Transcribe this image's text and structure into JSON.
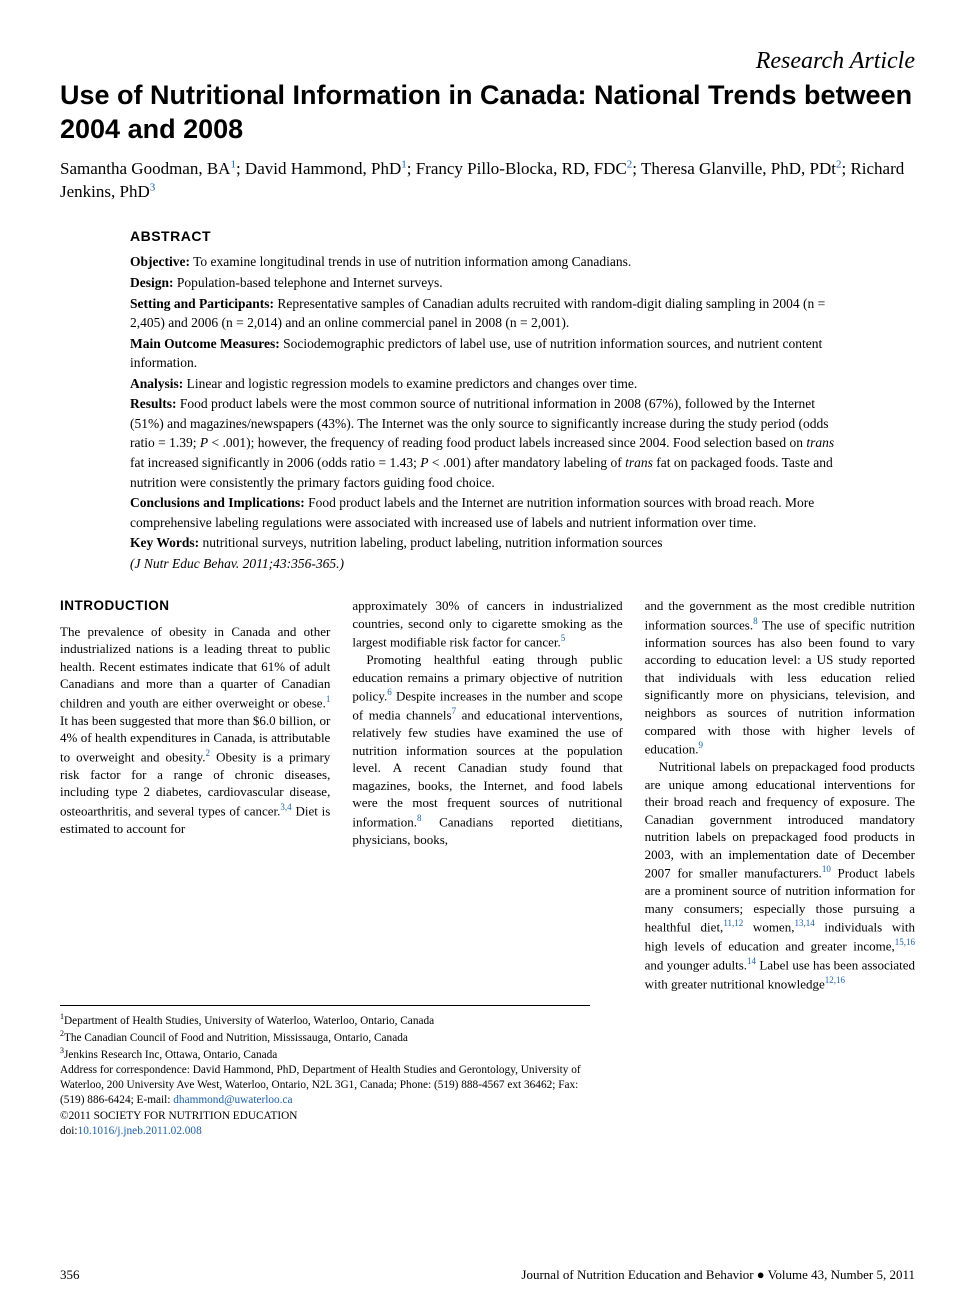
{
  "article_type": "Research Article",
  "title": "Use of Nutritional Information in Canada: National Trends between 2004 and 2008",
  "authors_html": "Samantha Goodman, BA<span class=\"sup\">1</span>; David Hammond, PhD<span class=\"sup\">1</span>; Francy Pillo-Blocka, RD, FDC<span class=\"sup\">2</span>; Theresa Glanville, PhD, PDt<span class=\"sup\">2</span>; Richard Jenkins, PhD<span class=\"sup\">3</span>",
  "abstract": {
    "heading": "ABSTRACT",
    "items": [
      {
        "label": "Objective:",
        "text": "To examine longitudinal trends in use of nutrition information among Canadians."
      },
      {
        "label": "Design:",
        "text": "Population-based telephone and Internet surveys."
      },
      {
        "label": "Setting and Participants:",
        "text": "Representative samples of Canadian adults recruited with random-digit dialing sampling in 2004 (n = 2,405) and 2006 (n = 2,014) and an online commercial panel in 2008 (n = 2,001)."
      },
      {
        "label": "Main Outcome Measures:",
        "text": "Sociodemographic predictors of label use, use of nutrition information sources, and nutrient content information."
      },
      {
        "label": "Analysis:",
        "text": "Linear and logistic regression models to examine predictors and changes over time."
      },
      {
        "label": "Results:",
        "text": "Food product labels were the most common source of nutritional information in 2008 (67%), followed by the Internet (51%) and magazines/newspapers (43%). The Internet was the only source to significantly increase during the study period (odds ratio = 1.39; <i>P</i> < .001); however, the frequency of reading food product labels increased since 2004. Food selection based on <i>trans</i> fat increased significantly in 2006 (odds ratio = 1.43; <i>P</i> < .001) after mandatory labeling of <i>trans</i> fat on packaged foods. Taste and nutrition were consistently the primary factors guiding food choice."
      },
      {
        "label": "Conclusions and Implications:",
        "text": "Food product labels and the Internet are nutrition information sources with broad reach. More comprehensive labeling regulations were associated with increased use of labels and nutrient information over time."
      },
      {
        "label": "Key Words:",
        "text": "nutritional surveys, nutrition labeling, product labeling, nutrition information sources"
      }
    ],
    "citation": "(J Nutr Educ Behav. 2011;43:356-365.)"
  },
  "intro_heading": "INTRODUCTION",
  "col1_p1": "The prevalence of obesity in Canada and other industrialized nations is a leading threat to public health. Recent estimates indicate that 61% of adult Canadians and more than a quarter of Canadian children and youth are either overweight or obese.<span class=\"sup\">1</span> It has been suggested that more than $6.0 billion, or 4% of health expenditures in Canada, is attributable to overweight and obesity.<span class=\"sup\">2</span> Obesity is a primary risk factor for a range of chronic diseases, including type 2 diabetes, cardiovascular disease, osteoarthritis, and several types of cancer.<span class=\"sup\">3,4</span> Diet is estimated to account for",
  "col2_p1": "approximately 30% of cancers in industrialized countries, second only to cigarette smoking as the largest modifiable risk factor for cancer.<span class=\"sup\">5</span>",
  "col2_p2": "Promoting healthful eating through public education remains a primary objective of nutrition policy.<span class=\"sup\">6</span> Despite increases in the number and scope of media channels<span class=\"sup\">7</span> and educational interventions, relatively few studies have examined the use of nutrition information sources at the population level. A recent Canadian study found that magazines, books, the Internet, and food labels were the most frequent sources of nutritional information.<span class=\"sup\">8</span> Canadians reported dietitians, physicians, books,",
  "col3_p1": "and the government as the most credible nutrition information sources.<span class=\"sup\">8</span> The use of specific nutrition information sources has also been found to vary according to education level: a US study reported that individuals with less education relied significantly more on physicians, television, and neighbors as sources of nutrition information compared with those with higher levels of education.<span class=\"sup\">9</span>",
  "col3_p2": "Nutritional labels on prepackaged food products are unique among educational interventions for their broad reach and frequency of exposure. The Canadian government introduced mandatory nutrition labels on prepackaged food products in 2003, with an implementation date of December 2007 for smaller manufacturers.<span class=\"sup\">10</span> Product labels are a prominent source of nutrition information for many consumers; especially those pursuing a healthful diet,<span class=\"sup\">11,12</span> women,<span class=\"sup\">13,14</span> individuals with high levels of education and greater income,<span class=\"sup\">15,16</span> and younger adults.<span class=\"sup\">14</span> Label use has been associated with greater nutritional knowledge<span class=\"sup\">12,16</span>",
  "affiliations": [
    "<span class=\"sup\">1</span>Department of Health Studies, University of Waterloo, Waterloo, Ontario, Canada",
    "<span class=\"sup\">2</span>The Canadian Council of Food and Nutrition, Mississauga, Ontario, Canada",
    "<span class=\"sup\">3</span>Jenkins Research Inc, Ottawa, Ontario, Canada"
  ],
  "correspondence": "Address for correspondence: David Hammond, PhD, Department of Health Studies and Gerontology, University of Waterloo, 200 University Ave West, Waterloo, Ontario, N2L 3G1, Canada; Phone: (519) 888-4567 ext 36462; Fax: (519) 886-6424; E-mail: ",
  "email": "dhammond@uwaterloo.ca",
  "copyright": "©2011 SOCIETY FOR NUTRITION EDUCATION",
  "doi_label": "doi:",
  "doi": "10.1016/j.jneb.2011.02.008",
  "footer": {
    "page": "356",
    "journal": "Journal of Nutrition Education and Behavior ● Volume 43, Number 5, 2011"
  },
  "colors": {
    "text": "#000000",
    "link": "#1a5fb4",
    "background": "#ffffff"
  },
  "fonts": {
    "title_family": "Arial",
    "title_size_pt": 20,
    "title_weight": "bold",
    "body_family": "Georgia",
    "body_size_pt": 10,
    "abstract_size_pt": 10
  }
}
